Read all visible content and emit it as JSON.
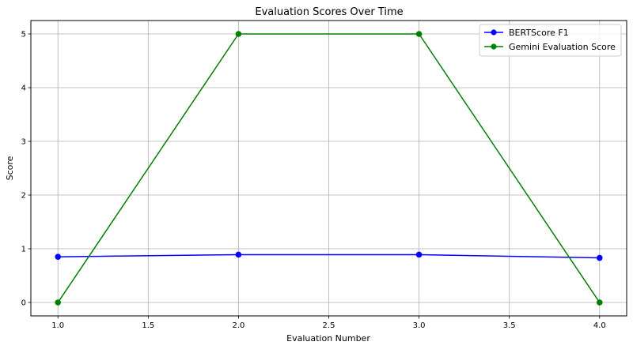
{
  "chart_data": {
    "type": "line",
    "title": "Evaluation Scores Over Time",
    "xlabel": "Evaluation Number",
    "ylabel": "Score",
    "x": [
      1.0,
      2.0,
      3.0,
      4.0
    ],
    "xlim": [
      0.85,
      4.15
    ],
    "ylim": [
      -0.25,
      5.25
    ],
    "xticks": [
      1.0,
      1.5,
      2.0,
      2.5,
      3.0,
      3.5,
      4.0
    ],
    "xtick_labels": [
      "1.0",
      "1.5",
      "2.0",
      "2.5",
      "3.0",
      "3.5",
      "4.0"
    ],
    "yticks": [
      0,
      1,
      2,
      3,
      4,
      5
    ],
    "ytick_labels": [
      "0",
      "1",
      "2",
      "3",
      "4",
      "5"
    ],
    "grid": true,
    "legend_position": "top-right",
    "series": [
      {
        "name": "BERTScore F1",
        "values": [
          0.85,
          0.89,
          0.89,
          0.83
        ],
        "color": "#0000ff",
        "marker": "circle"
      },
      {
        "name": "Gemini Evaluation Score",
        "values": [
          0,
          5,
          5,
          0
        ],
        "color": "#008000",
        "marker": "circle"
      }
    ]
  }
}
